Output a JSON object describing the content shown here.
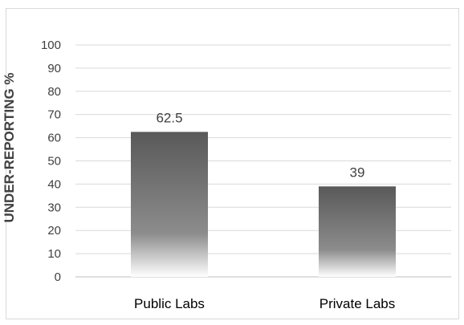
{
  "chart_data": {
    "type": "bar",
    "categories": [
      "Public Labs",
      "Private Labs"
    ],
    "values": [
      62.5,
      39
    ],
    "data_labels": [
      "62.5",
      "39"
    ],
    "title": "",
    "xlabel": "",
    "ylabel": "UNDER-REPORTING %",
    "ylim": [
      0,
      100
    ],
    "yticks": [
      0,
      10,
      20,
      30,
      40,
      50,
      60,
      70,
      80,
      90,
      100
    ],
    "grid": "horizontal",
    "colors": {
      "bar_top": "#595959",
      "bar_bottom": "#ffffff",
      "grid": "#d9d9d9",
      "axis": "#bfbfbf"
    }
  }
}
